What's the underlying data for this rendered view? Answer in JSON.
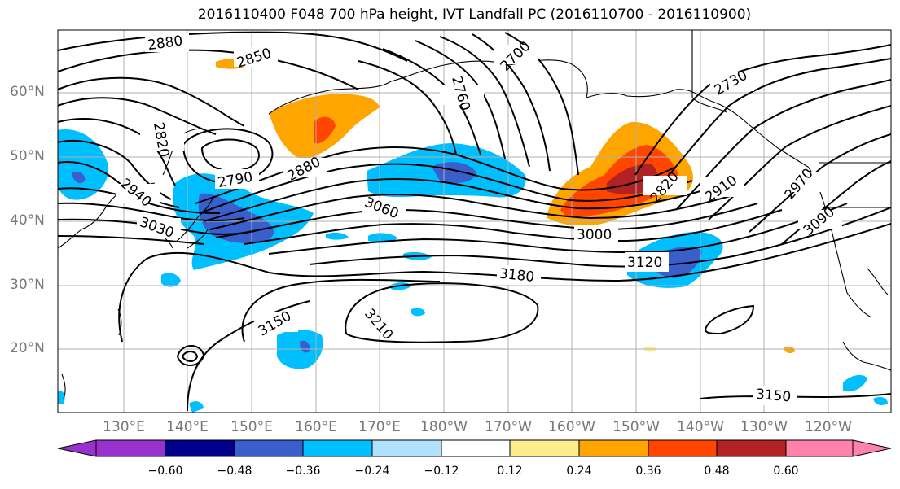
{
  "title": "2016110400 F048 700 hPa height, IVT Landfall PC (2016110700 - 2016110900)",
  "latitude_labels": [
    "60°N",
    "50°N",
    "40°N",
    "30°N",
    "20°N"
  ],
  "longitude_labels": [
    "130°E",
    "140°E",
    "150°E",
    "160°E",
    "170°E",
    "180°W",
    "170°W",
    "160°W",
    "150°W",
    "140°W",
    "130°W",
    "120°W"
  ],
  "contour_labels": [
    "2880",
    "2850",
    "2700",
    "2760",
    "2730",
    "2820",
    "2790",
    "2880",
    "2940",
    "3030",
    "3060",
    "3000",
    "3120",
    "3180",
    "3150",
    "3210",
    "2820",
    "2910",
    "2970",
    "3090",
    "3150"
  ],
  "colorbar": {
    "ticks": [
      "−0.60",
      "−0.48",
      "−0.36",
      "−0.24",
      "−0.12",
      "0.12",
      "0.24",
      "0.36",
      "0.48",
      "0.60"
    ],
    "colors": [
      "#9932cc",
      "#00008b",
      "#3a5fcd",
      "#00bfff",
      "#b0e2ff",
      "#ffffff",
      "#ffec8b",
      "#ffa500",
      "#ff4500",
      "#b22222",
      "#ff82ab"
    ]
  },
  "colors": {
    "neg_strong": "#3a5fcd",
    "neg_mid": "#00bfff",
    "neg_weak": "#b0e2ff",
    "pos_weak": "#ffec8b",
    "pos_mid": "#ffa500",
    "pos_strong": "#ff4500",
    "grid": "#b0b0b0"
  }
}
